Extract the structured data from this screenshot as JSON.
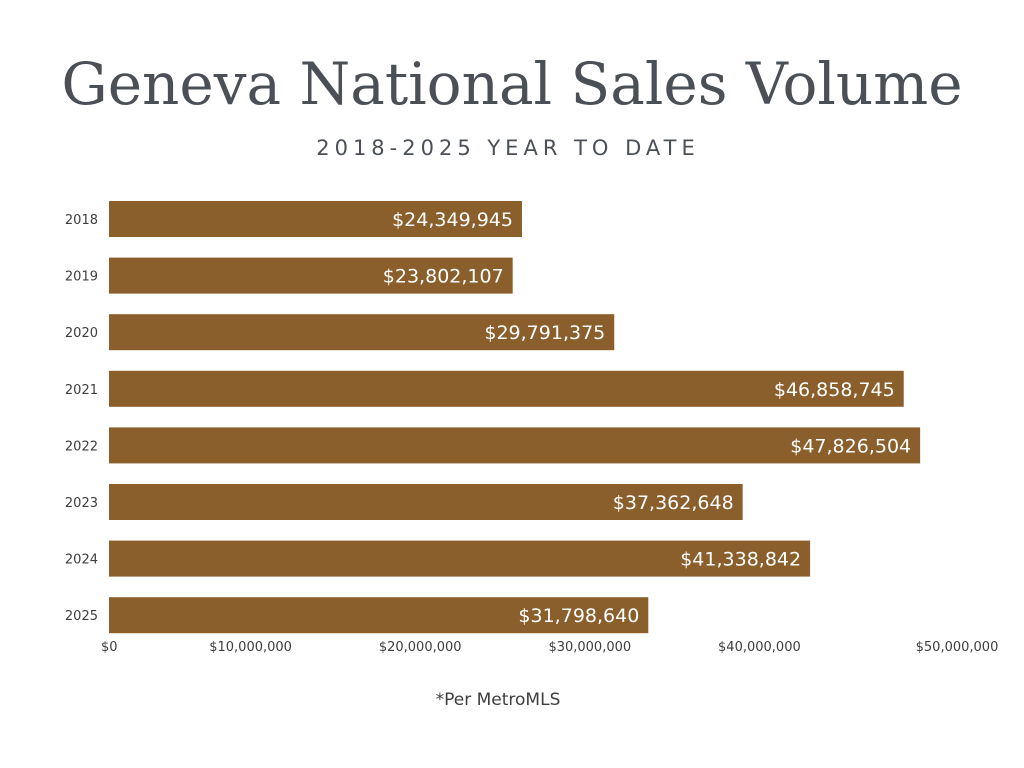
{
  "colors": {
    "bar": "#8a5f2c",
    "bar_label": "#ffffff",
    "text": "#4b5056"
  },
  "footnote": "*Per MetroMLS",
  "chart_data": {
    "type": "bar",
    "orientation": "horizontal",
    "title": "Geneva National Sales Volume",
    "subtitle": "2018-2025 YEAR TO DATE",
    "categories": [
      "2018",
      "2019",
      "2020",
      "2021",
      "2022",
      "2023",
      "2024",
      "2025"
    ],
    "values": [
      24349945,
      23802107,
      29791375,
      46858745,
      47826504,
      37362648,
      41338842,
      31798640
    ],
    "value_labels": [
      "$24,349,945",
      "$23,802,107",
      "$29,791,375",
      "$46,858,745",
      "$47,826,504",
      "$37,362,648",
      "$41,338,842",
      "$31,798,640"
    ],
    "xlim": [
      0,
      50000000
    ],
    "xticks": [
      0,
      10000000,
      20000000,
      30000000,
      40000000,
      50000000
    ],
    "xtick_labels": [
      "$0",
      "$10,000,000",
      "$20,000,000",
      "$30,000,000",
      "$40,000,000",
      "$50,000,000"
    ],
    "grid": false,
    "legend": "none"
  }
}
